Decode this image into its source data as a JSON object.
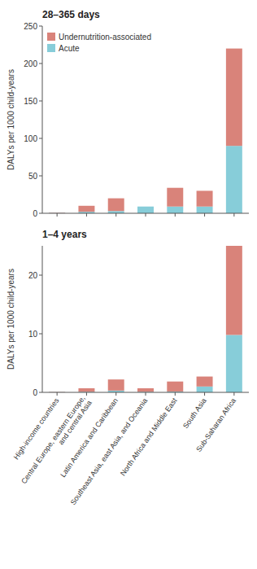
{
  "chart_data": [
    {
      "type": "bar",
      "stacked": true,
      "title": "28–365 days",
      "y_label": "DALYs per 1000 child-years",
      "categories": [
        "High-income countries",
        "Central Europe, eastern Europe,\nand central Asia",
        "Latin America and Caribbean",
        "Southeast Asia, east Asia, and Oceania",
        "North Africa and Middle East",
        "South Asia",
        "Sub-Saharan Africa"
      ],
      "series": [
        {
          "name": "Acute",
          "color": "#87cdd9",
          "values": [
            0.5,
            2.0,
            3.0,
            9.0,
            9.0,
            9.0,
            90.0
          ]
        },
        {
          "name": "Undernutrition-associated",
          "color": "#d9837a",
          "values": [
            0.5,
            8.0,
            17.0,
            0.0,
            25.0,
            21.0,
            130.0
          ]
        }
      ],
      "ylim": [
        0,
        250
      ],
      "yticks": [
        0,
        50,
        100,
        150,
        200,
        250
      ],
      "tick_labels": "y",
      "legend": "upper left",
      "grid": false
    },
    {
      "type": "bar",
      "stacked": true,
      "title": "1–4 years",
      "y_label": "DALYs per 1000 child-years",
      "categories": [
        "High-income countries",
        "Central Europe, eastern Europe,\nand central Asia",
        "Latin America and Caribbean",
        "Southeast Asia, east Asia, and Oceania",
        "North Africa and Middle East",
        "South Asia",
        "Sub-Saharan Africa"
      ],
      "series": [
        {
          "color": "#87cdd9",
          "values": [
            0.05,
            0.1,
            0.3,
            0.1,
            0.15,
            1.0,
            9.8
          ]
        },
        {
          "color": "#d9837a",
          "values": [
            0.05,
            0.6,
            1.9,
            0.6,
            1.7,
            1.7,
            15.2
          ]
        }
      ],
      "ylim": [
        0,
        25
      ],
      "yticks": [
        0,
        10,
        20
      ],
      "grid": false
    }
  ]
}
